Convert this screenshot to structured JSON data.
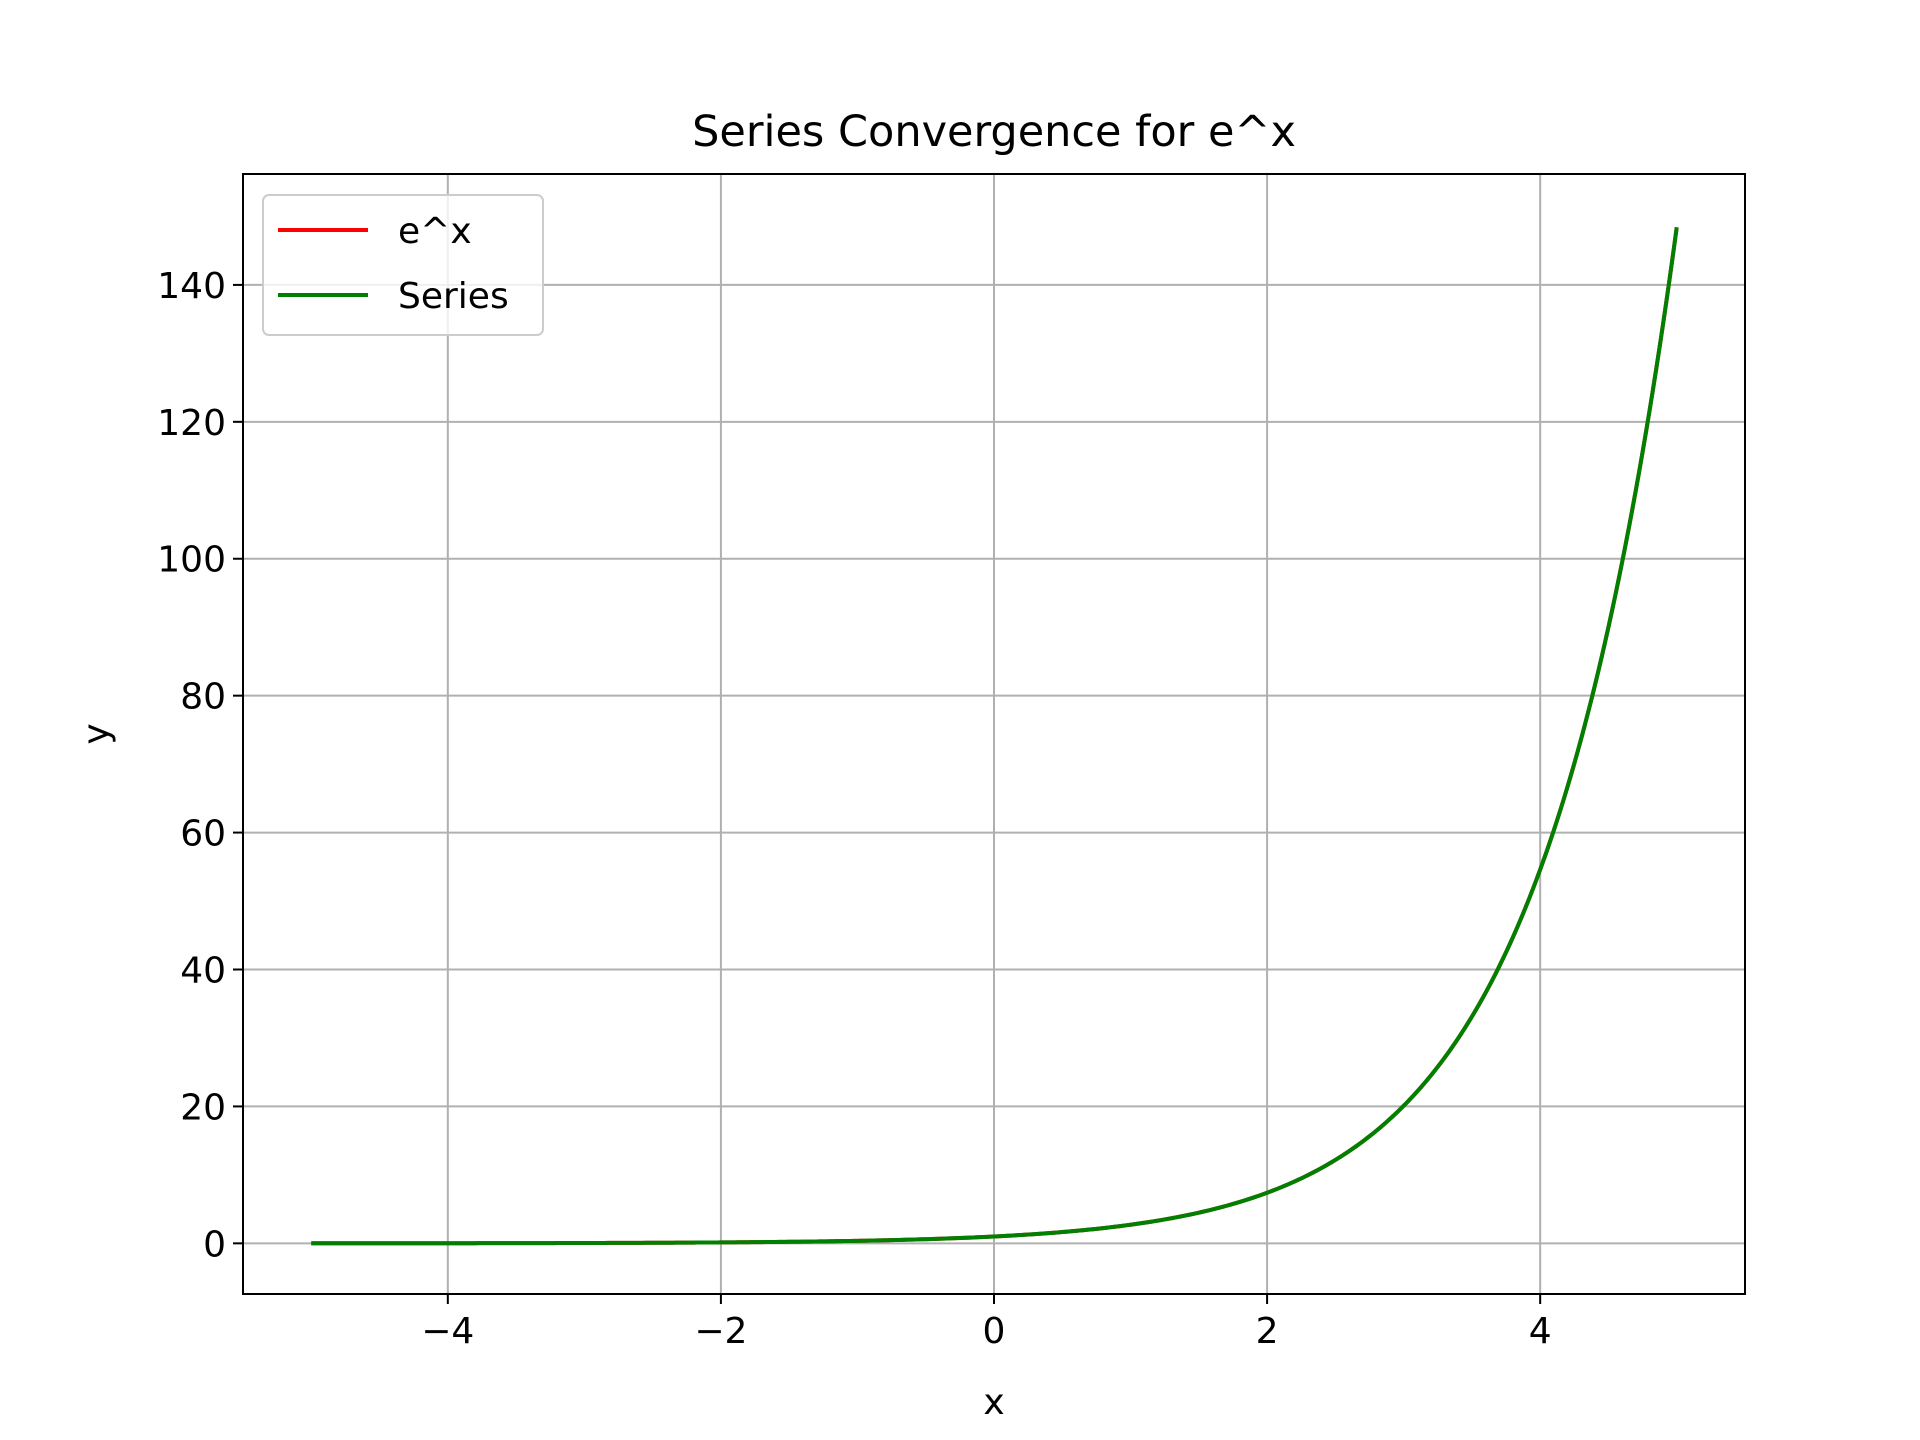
{
  "chart_data": {
    "type": "line",
    "title": "Series Convergence for e^x",
    "xlabel": "x",
    "ylabel": "y",
    "xlim": [
      -5.5,
      5.5
    ],
    "ylim": [
      -7.4,
      156.2
    ],
    "x_ticks": [
      -4,
      -2,
      0,
      2,
      4
    ],
    "x_tick_labels": [
      "−4",
      "−2",
      "0",
      "2",
      "4"
    ],
    "y_ticks": [
      0,
      20,
      40,
      60,
      80,
      100,
      120,
      140
    ],
    "y_tick_labels": [
      "0",
      "20",
      "40",
      "60",
      "80",
      "100",
      "120",
      "140"
    ],
    "grid": true,
    "legend": "upper left",
    "x_range": [
      -5,
      5
    ],
    "series": [
      {
        "name": "e^x",
        "color": "#ff0000",
        "function": "exp(x)"
      },
      {
        "name": "Series",
        "color": "#008000",
        "function": "partial sum of Taylor series for e^x (visually identical to exp(x))"
      }
    ]
  }
}
